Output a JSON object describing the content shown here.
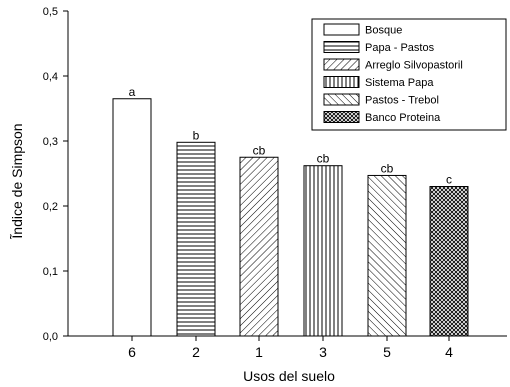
{
  "chart_data": {
    "type": "bar",
    "categories": [
      "6",
      "2",
      "1",
      "3",
      "5",
      "4"
    ],
    "values": [
      0.365,
      0.298,
      0.275,
      0.262,
      0.247,
      0.23
    ],
    "letters": [
      "a",
      "b",
      "cb",
      "cb",
      "cb",
      "c"
    ],
    "patterns": [
      "solid",
      "hlines",
      "diag-right",
      "vlines",
      "diag-left",
      "crosshatch"
    ],
    "series": [
      {
        "name": "Bosque"
      },
      {
        "name": "Papa - Pastos"
      },
      {
        "name": "Arreglo Silvopastoril"
      },
      {
        "name": "Sistema Papa"
      },
      {
        "name": "Pastos - Trebol"
      },
      {
        "name": "Banco Proteina"
      }
    ],
    "xlabel": "Usos del suelo",
    "ylabel": "Ĩndice de Simpson",
    "ylim": [
      0,
      0.5
    ],
    "yticks": [
      "0,0",
      "0,1",
      "0,2",
      "0,3",
      "0,4",
      "0,5"
    ],
    "grid": false,
    "legend_position": "top-right"
  }
}
